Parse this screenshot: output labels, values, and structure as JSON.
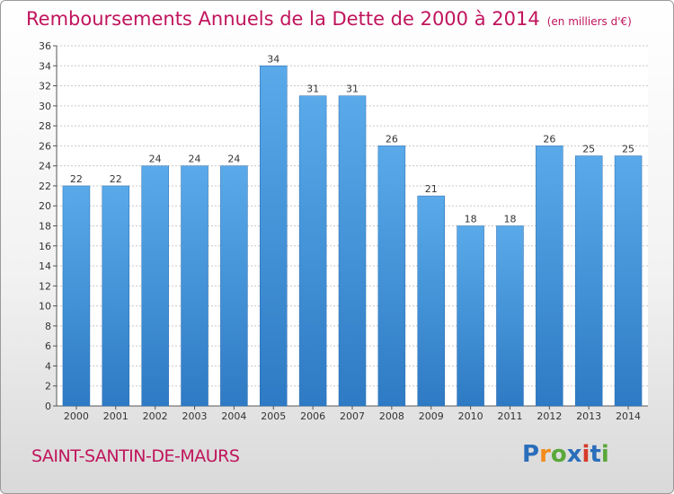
{
  "chart_data": {
    "type": "bar",
    "title": "Remboursements Annuels de la Dette de 2000 à 2014",
    "subtitle": "(en milliers d'€)",
    "categories": [
      "2000",
      "2001",
      "2002",
      "2003",
      "2004",
      "2005",
      "2006",
      "2007",
      "2008",
      "2009",
      "2010",
      "2011",
      "2012",
      "2013",
      "2014"
    ],
    "values": [
      22,
      22,
      24,
      24,
      24,
      34,
      31,
      31,
      26,
      21,
      18,
      18,
      26,
      25,
      25
    ],
    "ylim": [
      0,
      36
    ],
    "yticks": [
      0,
      2,
      4,
      6,
      8,
      10,
      12,
      14,
      16,
      18,
      20,
      22,
      24,
      26,
      28,
      30,
      32,
      34,
      36
    ],
    "grid": true,
    "colors": {
      "bar": "#3d8fd8",
      "bar_light": "#5aaaea",
      "bar_dark": "#2e7ac4",
      "title": "#c0145c",
      "grid": "#c8c8c8"
    }
  },
  "footer": {
    "commune": "SAINT-SANTIN-DE-MAURS",
    "logo_letters": [
      "P",
      "r",
      "o",
      "x",
      "i",
      "t",
      "i"
    ],
    "logo_colors": [
      "#2a6ebb",
      "#f28c1c",
      "#5aa83a",
      "#2a6ebb",
      "#d63a2a",
      "#2a6ebb",
      "#5aa83a"
    ]
  }
}
